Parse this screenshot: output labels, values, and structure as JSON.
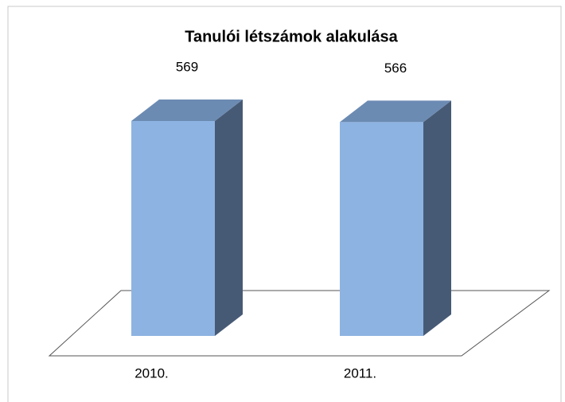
{
  "chart_data": {
    "type": "bar3d",
    "title": "Tanulói létszámok alakulása",
    "categories": [
      "2010.",
      "2011."
    ],
    "values": [
      569,
      566
    ],
    "colors": {
      "front": "#8db3e2",
      "top": "#6c8bb3",
      "side": "#475a75"
    }
  }
}
